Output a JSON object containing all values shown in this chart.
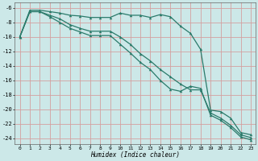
{
  "xlabel": "Humidex (Indice chaleur)",
  "background_color": "#cce8e8",
  "grid_color": "#d4a0a0",
  "line_color": "#2a7a6a",
  "xlim": [
    -0.5,
    23.5
  ],
  "ylim": [
    -24.8,
    -5.2
  ],
  "xticks": [
    0,
    1,
    2,
    3,
    4,
    5,
    6,
    7,
    8,
    9,
    10,
    11,
    12,
    13,
    14,
    15,
    16,
    17,
    18,
    19,
    20,
    21,
    22,
    23
  ],
  "yticks": [
    -6,
    -8,
    -10,
    -12,
    -14,
    -16,
    -18,
    -20,
    -22,
    -24
  ],
  "line1_x": [
    0,
    1,
    2,
    3,
    4,
    5,
    6,
    7,
    8,
    9,
    10,
    11,
    12,
    13,
    14,
    15,
    16,
    17,
    18,
    19,
    20,
    21,
    22,
    23
  ],
  "line1_y": [
    -10.0,
    -6.3,
    -6.3,
    -6.5,
    -6.7,
    -7.0,
    -7.1,
    -7.3,
    -7.3,
    -7.3,
    -6.7,
    -7.0,
    -7.0,
    -7.3,
    -6.9,
    -7.2,
    -8.5,
    -9.5,
    -11.7,
    -20.1,
    -20.3,
    -21.2,
    -23.2,
    -23.5
  ],
  "line2_x": [
    0,
    1,
    2,
    3,
    4,
    5,
    6,
    7,
    8,
    9,
    10,
    11,
    12,
    13,
    14,
    15,
    16,
    17,
    18,
    19,
    20,
    21,
    22,
    23
  ],
  "line2_y": [
    -10.0,
    -6.5,
    -6.5,
    -7.0,
    -7.5,
    -8.3,
    -8.8,
    -9.2,
    -9.2,
    -9.2,
    -10.0,
    -11.0,
    -12.3,
    -13.3,
    -14.5,
    -15.5,
    -16.5,
    -17.3,
    -17.3,
    -20.5,
    -21.2,
    -22.2,
    -23.5,
    -23.9
  ],
  "line3_x": [
    0,
    1,
    2,
    3,
    4,
    5,
    6,
    7,
    8,
    9,
    10,
    11,
    12,
    13,
    14,
    15,
    16,
    17,
    18,
    19,
    20,
    21,
    22,
    23
  ],
  "line3_y": [
    -10.0,
    -6.5,
    -6.5,
    -7.2,
    -8.0,
    -8.8,
    -9.3,
    -9.8,
    -9.8,
    -9.8,
    -11.0,
    -12.2,
    -13.5,
    -14.5,
    -16.0,
    -17.2,
    -17.5,
    -16.8,
    -17.1,
    -20.8,
    -21.5,
    -22.5,
    -23.8,
    -24.2
  ]
}
